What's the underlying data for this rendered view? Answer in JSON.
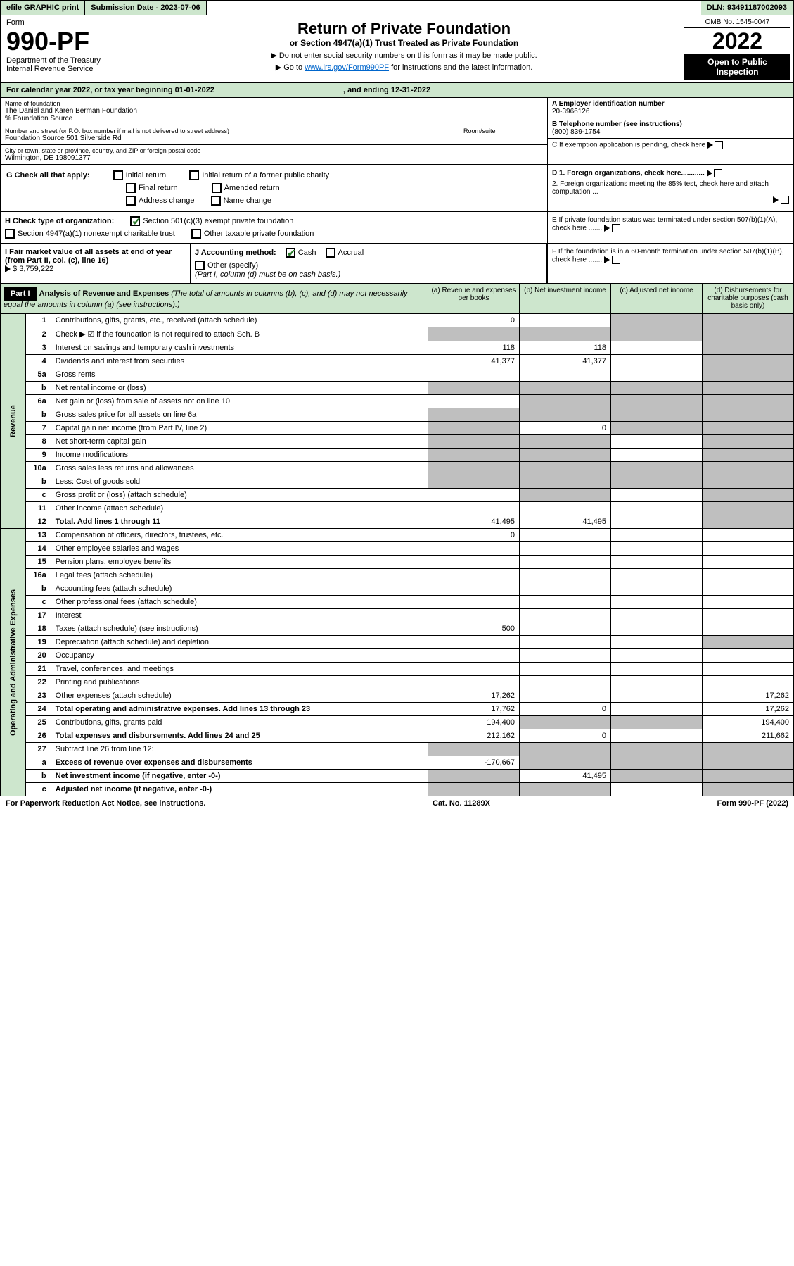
{
  "topbar": {
    "efile": "efile GRAPHIC print",
    "subdate_label": "Submission Date - 2023-07-06",
    "dln": "DLN: 93491187002093"
  },
  "header": {
    "form_label": "Form",
    "form_number": "990-PF",
    "dept": "Department of the Treasury",
    "irs": "Internal Revenue Service",
    "title": "Return of Private Foundation",
    "subtitle": "or Section 4947(a)(1) Trust Treated as Private Foundation",
    "instruction1": "▶ Do not enter social security numbers on this form as it may be made public.",
    "instruction2_pre": "▶ Go to ",
    "instruction2_link": "www.irs.gov/Form990PF",
    "instruction2_post": " for instructions and the latest information.",
    "omb": "OMB No. 1545-0047",
    "year": "2022",
    "open_public": "Open to Public Inspection"
  },
  "calendar": {
    "text_pre": "For calendar year 2022, or tax year beginning ",
    "begin": "01-01-2022",
    "text_mid": " , and ending ",
    "end": "12-31-2022"
  },
  "entity": {
    "name_label": "Name of foundation",
    "name": "The Daniel and Karen Berman Foundation",
    "care_of": "% Foundation Source",
    "addr_label": "Number and street (or P.O. box number if mail is not delivered to street address)",
    "addr": "Foundation Source 501 Silverside Rd",
    "room_label": "Room/suite",
    "city_label": "City or town, state or province, country, and ZIP or foreign postal code",
    "city": "Wilmington, DE 198091377",
    "ein_label": "A Employer identification number",
    "ein": "20-3966126",
    "phone_label": "B Telephone number (see instructions)",
    "phone": "(800) 839-1754",
    "c_label": "C If exemption application is pending, check here",
    "d1_label": "D 1. Foreign organizations, check here............",
    "d2_label": "2. Foreign organizations meeting the 85% test, check here and attach computation ...",
    "e_label": "E If private foundation status was terminated under section 507(b)(1)(A), check here .......",
    "f_label": "F If the foundation is in a 60-month termination under section 507(b)(1)(B), check here ......."
  },
  "g": {
    "label": "G Check all that apply:",
    "initial_return": "Initial return",
    "final_return": "Final return",
    "address_change": "Address change",
    "initial_former": "Initial return of a former public charity",
    "amended": "Amended return",
    "name_change": "Name change"
  },
  "h": {
    "label": "H Check type of organization:",
    "501c3": "Section 501(c)(3) exempt private foundation",
    "4947": "Section 4947(a)(1) nonexempt charitable trust",
    "other_taxable": "Other taxable private foundation"
  },
  "i": {
    "label": "I Fair market value of all assets at end of year (from Part II, col. (c), line 16)",
    "value": "3,759,222"
  },
  "j": {
    "label": "J Accounting method:",
    "cash": "Cash",
    "accrual": "Accrual",
    "other": "Other (specify)",
    "note": "(Part I, column (d) must be on cash basis.)"
  },
  "part1": {
    "label": "Part I",
    "title": "Analysis of Revenue and Expenses",
    "subtitle": "(The total of amounts in columns (b), (c), and (d) may not necessarily equal the amounts in column (a) (see instructions).)",
    "col_a": "(a) Revenue and expenses per books",
    "col_b": "(b) Net investment income",
    "col_c": "(c) Adjusted net income",
    "col_d": "(d) Disbursements for charitable purposes (cash basis only)"
  },
  "sidelabels": {
    "revenue": "Revenue",
    "opex": "Operating and Administrative Expenses"
  },
  "rows": [
    {
      "n": "1",
      "desc": "Contributions, gifts, grants, etc., received (attach schedule)",
      "a": "0",
      "b": "",
      "c": "",
      "d": "",
      "shade_c": true,
      "shade_d": true
    },
    {
      "n": "2",
      "desc": "Check ▶ ☑ if the foundation is not required to attach Sch. B",
      "a": "",
      "b": "",
      "c": "",
      "d": "",
      "shade_a": true,
      "shade_b": true,
      "shade_c": true,
      "shade_d": true,
      "bold_not": true
    },
    {
      "n": "3",
      "desc": "Interest on savings and temporary cash investments",
      "a": "118",
      "b": "118",
      "c": "",
      "d": "",
      "shade_d": true
    },
    {
      "n": "4",
      "desc": "Dividends and interest from securities",
      "a": "41,377",
      "b": "41,377",
      "c": "",
      "d": "",
      "shade_d": true
    },
    {
      "n": "5a",
      "desc": "Gross rents",
      "a": "",
      "b": "",
      "c": "",
      "d": "",
      "shade_d": true
    },
    {
      "n": "b",
      "desc": "Net rental income or (loss)",
      "a": "",
      "b": "",
      "c": "",
      "d": "",
      "shade_a": true,
      "shade_b": true,
      "shade_c": true,
      "shade_d": true
    },
    {
      "n": "6a",
      "desc": "Net gain or (loss) from sale of assets not on line 10",
      "a": "",
      "b": "",
      "c": "",
      "d": "",
      "shade_b": true,
      "shade_c": true,
      "shade_d": true
    },
    {
      "n": "b",
      "desc": "Gross sales price for all assets on line 6a",
      "a": "",
      "b": "",
      "c": "",
      "d": "",
      "shade_a": true,
      "shade_b": true,
      "shade_c": true,
      "shade_d": true
    },
    {
      "n": "7",
      "desc": "Capital gain net income (from Part IV, line 2)",
      "a": "",
      "b": "0",
      "c": "",
      "d": "",
      "shade_a": true,
      "shade_c": true,
      "shade_d": true
    },
    {
      "n": "8",
      "desc": "Net short-term capital gain",
      "a": "",
      "b": "",
      "c": "",
      "d": "",
      "shade_a": true,
      "shade_b": true,
      "shade_d": true
    },
    {
      "n": "9",
      "desc": "Income modifications",
      "a": "",
      "b": "",
      "c": "",
      "d": "",
      "shade_a": true,
      "shade_b": true,
      "shade_d": true
    },
    {
      "n": "10a",
      "desc": "Gross sales less returns and allowances",
      "a": "",
      "b": "",
      "c": "",
      "d": "",
      "shade_a": true,
      "shade_b": true,
      "shade_c": true,
      "shade_d": true
    },
    {
      "n": "b",
      "desc": "Less: Cost of goods sold",
      "a": "",
      "b": "",
      "c": "",
      "d": "",
      "shade_a": true,
      "shade_b": true,
      "shade_c": true,
      "shade_d": true
    },
    {
      "n": "c",
      "desc": "Gross profit or (loss) (attach schedule)",
      "a": "",
      "b": "",
      "c": "",
      "d": "",
      "shade_b": true,
      "shade_d": true
    },
    {
      "n": "11",
      "desc": "Other income (attach schedule)",
      "a": "",
      "b": "",
      "c": "",
      "d": "",
      "shade_d": true
    },
    {
      "n": "12",
      "desc": "Total. Add lines 1 through 11",
      "a": "41,495",
      "b": "41,495",
      "c": "",
      "d": "",
      "bold": true,
      "shade_d": true
    },
    {
      "n": "13",
      "desc": "Compensation of officers, directors, trustees, etc.",
      "a": "0",
      "b": "",
      "c": "",
      "d": ""
    },
    {
      "n": "14",
      "desc": "Other employee salaries and wages",
      "a": "",
      "b": "",
      "c": "",
      "d": ""
    },
    {
      "n": "15",
      "desc": "Pension plans, employee benefits",
      "a": "",
      "b": "",
      "c": "",
      "d": ""
    },
    {
      "n": "16a",
      "desc": "Legal fees (attach schedule)",
      "a": "",
      "b": "",
      "c": "",
      "d": ""
    },
    {
      "n": "b",
      "desc": "Accounting fees (attach schedule)",
      "a": "",
      "b": "",
      "c": "",
      "d": ""
    },
    {
      "n": "c",
      "desc": "Other professional fees (attach schedule)",
      "a": "",
      "b": "",
      "c": "",
      "d": ""
    },
    {
      "n": "17",
      "desc": "Interest",
      "a": "",
      "b": "",
      "c": "",
      "d": ""
    },
    {
      "n": "18",
      "desc": "Taxes (attach schedule) (see instructions)",
      "a": "500",
      "b": "",
      "c": "",
      "d": ""
    },
    {
      "n": "19",
      "desc": "Depreciation (attach schedule) and depletion",
      "a": "",
      "b": "",
      "c": "",
      "d": "",
      "shade_d": true
    },
    {
      "n": "20",
      "desc": "Occupancy",
      "a": "",
      "b": "",
      "c": "",
      "d": ""
    },
    {
      "n": "21",
      "desc": "Travel, conferences, and meetings",
      "a": "",
      "b": "",
      "c": "",
      "d": ""
    },
    {
      "n": "22",
      "desc": "Printing and publications",
      "a": "",
      "b": "",
      "c": "",
      "d": ""
    },
    {
      "n": "23",
      "desc": "Other expenses (attach schedule)",
      "a": "17,262",
      "b": "",
      "c": "",
      "d": "17,262"
    },
    {
      "n": "24",
      "desc": "Total operating and administrative expenses. Add lines 13 through 23",
      "a": "17,762",
      "b": "0",
      "c": "",
      "d": "17,262",
      "bold": true
    },
    {
      "n": "25",
      "desc": "Contributions, gifts, grants paid",
      "a": "194,400",
      "b": "",
      "c": "",
      "d": "194,400",
      "shade_b": true,
      "shade_c": true
    },
    {
      "n": "26",
      "desc": "Total expenses and disbursements. Add lines 24 and 25",
      "a": "212,162",
      "b": "0",
      "c": "",
      "d": "211,662",
      "bold": true
    },
    {
      "n": "27",
      "desc": "Subtract line 26 from line 12:",
      "a": "",
      "b": "",
      "c": "",
      "d": "",
      "shade_a": true,
      "shade_b": true,
      "shade_c": true,
      "shade_d": true
    },
    {
      "n": "a",
      "desc": "Excess of revenue over expenses and disbursements",
      "a": "-170,667",
      "b": "",
      "c": "",
      "d": "",
      "bold": true,
      "shade_b": true,
      "shade_c": true,
      "shade_d": true
    },
    {
      "n": "b",
      "desc": "Net investment income (if negative, enter -0-)",
      "a": "",
      "b": "41,495",
      "c": "",
      "d": "",
      "bold": true,
      "shade_a": true,
      "shade_c": true,
      "shade_d": true
    },
    {
      "n": "c",
      "desc": "Adjusted net income (if negative, enter -0-)",
      "a": "",
      "b": "",
      "c": "",
      "d": "",
      "bold": true,
      "shade_a": true,
      "shade_b": true,
      "shade_d": true
    }
  ],
  "footer": {
    "paperwork": "For Paperwork Reduction Act Notice, see instructions.",
    "catno": "Cat. No. 11289X",
    "formref": "Form 990-PF (2022)"
  }
}
